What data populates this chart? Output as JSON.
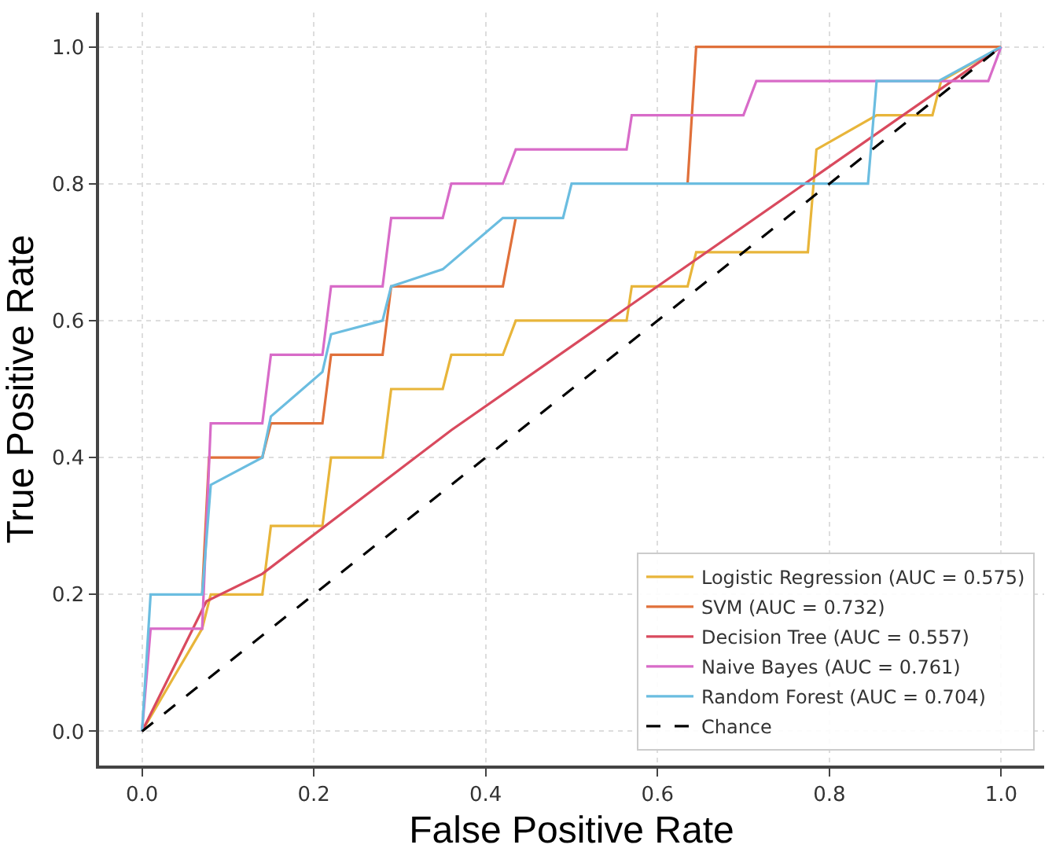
{
  "chart_data": {
    "type": "line",
    "xlabel": "False Positive Rate",
    "ylabel": "True Positive Rate",
    "xlim": [
      -0.05,
      1.05
    ],
    "ylim": [
      -0.05,
      1.05
    ],
    "xticks": [
      {
        "value": 0,
        "label": "0.0"
      },
      {
        "value": 0.2,
        "label": "0.2"
      },
      {
        "value": 0.4,
        "label": "0.4"
      },
      {
        "value": 0.6,
        "label": "0.6"
      },
      {
        "value": 0.8,
        "label": "0.8"
      },
      {
        "value": 1,
        "label": "1.0"
      }
    ],
    "yticks": [
      {
        "value": 0,
        "label": "0.0"
      },
      {
        "value": 0.2,
        "label": "0.2"
      },
      {
        "value": 0.4,
        "label": "0.4"
      },
      {
        "value": 0.6,
        "label": "0.6"
      },
      {
        "value": 0.8,
        "label": "0.8"
      },
      {
        "value": 1,
        "label": "1.0"
      }
    ],
    "grid": true,
    "legend": "bottom right",
    "marker": "none",
    "series": [
      {
        "name": "Logistic Regression (AUC = 0.575)",
        "color": "#e8b53a",
        "line_style": "solid",
        "x": [
          0,
          0.07,
          0.08,
          0.14,
          0.15,
          0.21,
          0.22,
          0.28,
          0.29,
          0.35,
          0.36,
          0.42,
          0.435,
          0.564,
          0.57,
          0.635,
          0.645,
          0.775,
          0.785,
          0.855,
          0.92,
          0.93,
          1
        ],
        "values": [
          0,
          0.15,
          0.2,
          0.2,
          0.3,
          0.3,
          0.4,
          0.4,
          0.5,
          0.5,
          0.55,
          0.55,
          0.6,
          0.6,
          0.65,
          0.65,
          0.7,
          0.7,
          0.85,
          0.9,
          0.9,
          0.95,
          1
        ]
      },
      {
        "name": "SVM (AUC = 0.732)",
        "color": "#e0703a",
        "line_style": "solid",
        "x": [
          0.07,
          0.078,
          0.14,
          0.15,
          0.21,
          0.22,
          0.28,
          0.29,
          0.42,
          0.435,
          0.49,
          0.5,
          0.635,
          0.645,
          1
        ],
        "values": [
          0.2,
          0.4,
          0.4,
          0.45,
          0.45,
          0.55,
          0.55,
          0.65,
          0.65,
          0.75,
          null,
          null,
          0.8,
          1,
          1
        ]
      },
      {
        "name": "Decision Tree (AUC = 0.557)",
        "color": "#d94a5e",
        "line_style": "solid",
        "x": [
          0,
          0.075,
          0.14,
          0.36,
          1
        ],
        "values": [
          0,
          0.19,
          0.23,
          0.44,
          1
        ]
      },
      {
        "name": "Naive Bayes (AUC = 0.761)",
        "color": "#d86bc8",
        "line_style": "solid",
        "x": [
          0,
          0.01,
          0.07,
          0.08,
          0.14,
          0.15,
          0.21,
          0.22,
          0.28,
          0.29,
          0.35,
          0.36,
          0.42,
          0.435,
          0.564,
          0.57,
          0.7,
          0.715,
          0.985,
          1
        ],
        "values": [
          0,
          0.15,
          0.15,
          0.45,
          0.45,
          0.55,
          0.55,
          0.65,
          0.65,
          0.75,
          0.75,
          0.8,
          0.8,
          0.85,
          0.85,
          0.9,
          0.9,
          0.95,
          0.95,
          1
        ]
      },
      {
        "name": "Random Forest (AUC = 0.704)",
        "color": "#6bbde0",
        "line_style": "solid",
        "x": [
          0,
          0.01,
          0.07,
          0.08,
          0.14,
          0.15,
          0.21,
          0.22,
          0.28,
          0.29,
          0.35,
          0.42,
          0.49,
          0.5,
          0.845,
          0.855,
          0.927,
          1
        ],
        "values": [
          0,
          0.2,
          0.2,
          0.36,
          0.4,
          0.46,
          0.525,
          0.58,
          0.6,
          0.65,
          0.675,
          0.75,
          0.75,
          0.8,
          0.8,
          0.95,
          0.95,
          1
        ]
      },
      {
        "name": "Chance",
        "color": "#000000",
        "line_style": "dashed",
        "x": [
          0,
          1
        ],
        "values": [
          0,
          1
        ]
      }
    ]
  }
}
